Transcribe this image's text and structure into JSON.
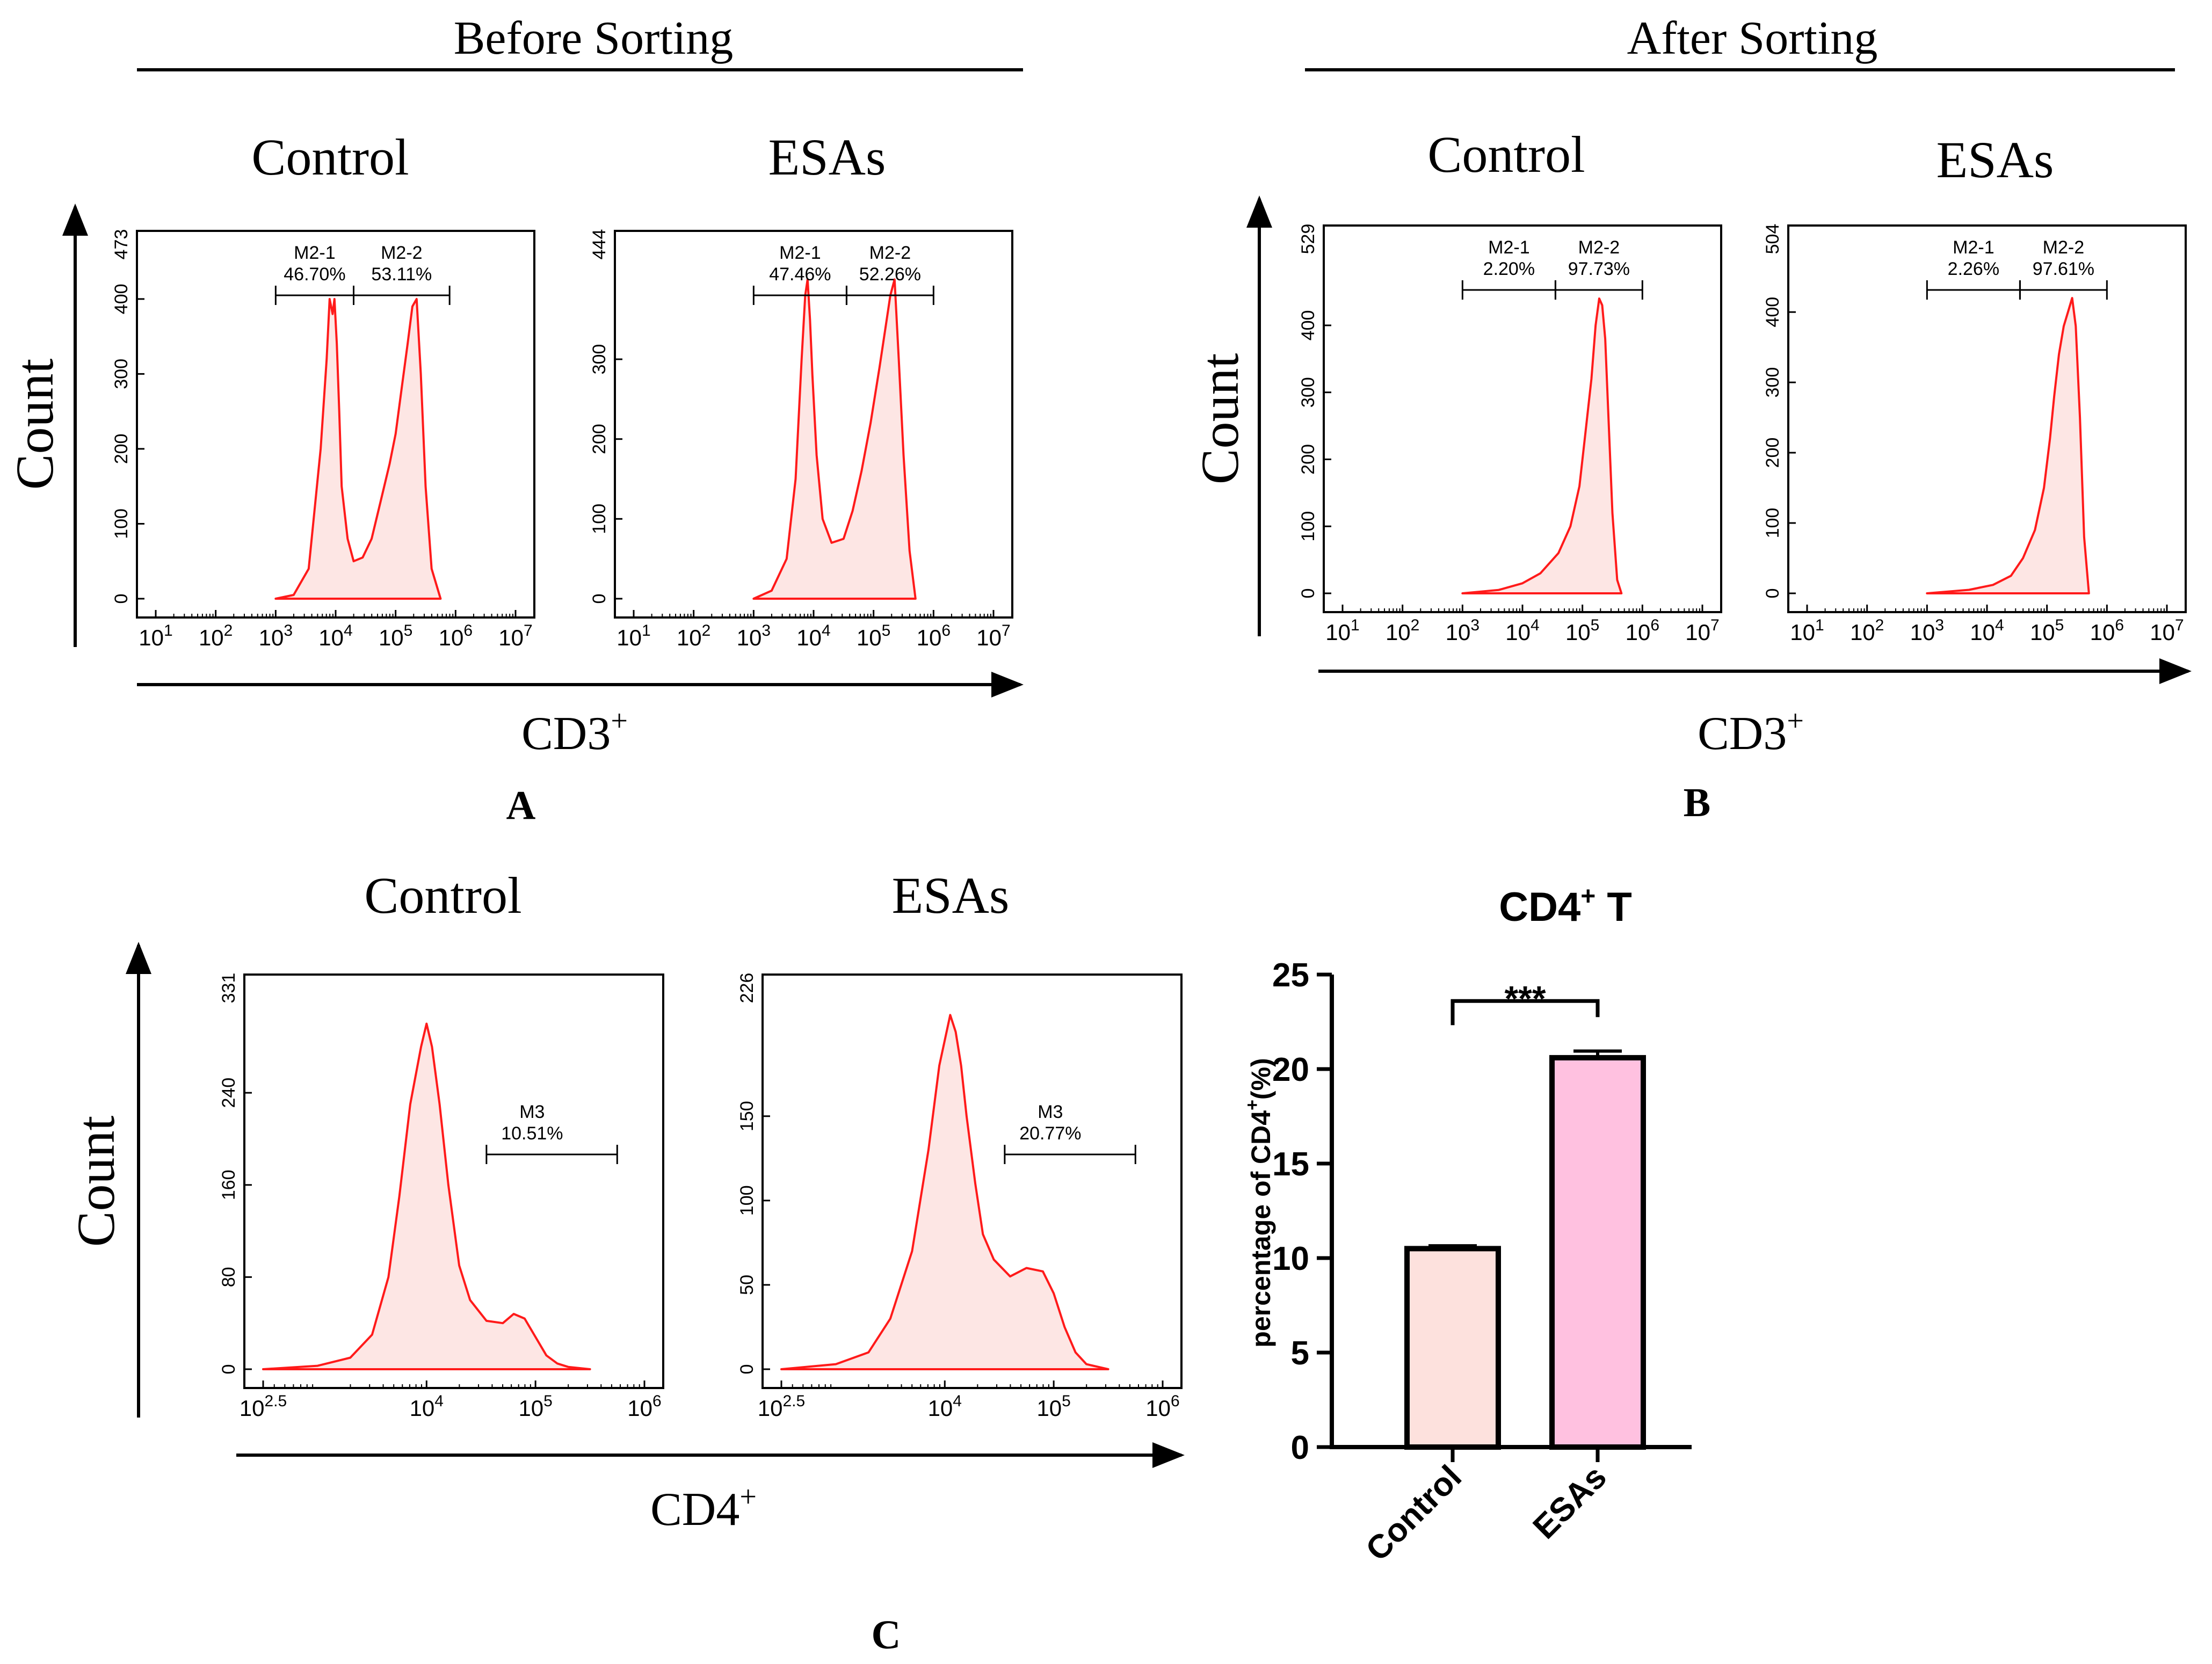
{
  "figure": {
    "section_before": "Before Sorting",
    "section_after": "After Sorting",
    "count_label": "Count",
    "panel_letters": {
      "a": "A",
      "b": "B",
      "c": "C"
    },
    "x_label_a": "CD3",
    "x_label_a_sup": "+",
    "x_label_b": "CD3",
    "x_label_b_sup": "+",
    "x_label_c": "CD4",
    "x_label_c_sup": "+",
    "group_titles": {
      "a1": "Control",
      "a2": "ESAs",
      "b1": "Control",
      "b2": "ESAs",
      "c1": "Control",
      "c2": "ESAs"
    }
  },
  "chart_data": [
    {
      "id": "a1",
      "type": "histogram",
      "panel": "A",
      "group": "Control",
      "x_scale": "log10",
      "xlim_log": [
        1,
        7
      ],
      "x_ticks": [
        1,
        2,
        3,
        4,
        5,
        6,
        7
      ],
      "y_ticks": [
        0,
        100,
        200,
        300,
        400
      ],
      "y_max_label": "473",
      "ylim": [
        0,
        473
      ],
      "gates": [
        {
          "name": "M2-1",
          "value": "46.70%",
          "from": 3,
          "to": 4.3
        },
        {
          "name": "M2-2",
          "value": "53.11%",
          "from": 4.3,
          "to": 5.9
        }
      ],
      "histogram_log_x": [
        3.0,
        3.3,
        3.55,
        3.75,
        3.85,
        3.9,
        3.95,
        3.98,
        4.02,
        4.06,
        4.1,
        4.2,
        4.3,
        4.45,
        4.6,
        4.75,
        4.9,
        5.0,
        5.1,
        5.2,
        5.28,
        5.35,
        5.42,
        5.5,
        5.6,
        5.75
      ],
      "histogram_counts": [
        0,
        5,
        40,
        200,
        320,
        400,
        380,
        400,
        340,
        250,
        150,
        80,
        50,
        55,
        80,
        130,
        180,
        220,
        280,
        340,
        390,
        400,
        300,
        150,
        40,
        0
      ]
    },
    {
      "id": "a2",
      "type": "histogram",
      "panel": "A",
      "group": "ESAs",
      "x_scale": "log10",
      "xlim_log": [
        1,
        7
      ],
      "x_ticks": [
        1,
        2,
        3,
        4,
        5,
        6,
        7
      ],
      "y_ticks": [
        0,
        100,
        200,
        300
      ],
      "y_max_label": "444",
      "ylim": [
        0,
        444
      ],
      "gates": [
        {
          "name": "M2-1",
          "value": "47.46%",
          "from": 3,
          "to": 4.55
        },
        {
          "name": "M2-2",
          "value": "52.26%",
          "from": 4.55,
          "to": 6.0
        }
      ],
      "histogram_log_x": [
        3.0,
        3.3,
        3.55,
        3.7,
        3.8,
        3.86,
        3.9,
        3.94,
        3.98,
        4.05,
        4.15,
        4.3,
        4.5,
        4.65,
        4.8,
        4.95,
        5.1,
        5.2,
        5.28,
        5.35,
        5.42,
        5.5,
        5.6,
        5.7
      ],
      "histogram_counts": [
        0,
        10,
        50,
        150,
        300,
        380,
        400,
        350,
        280,
        180,
        100,
        70,
        75,
        110,
        160,
        220,
        290,
        340,
        380,
        400,
        300,
        180,
        60,
        0
      ]
    },
    {
      "id": "b1",
      "type": "histogram",
      "panel": "B",
      "group": "Control",
      "x_scale": "log10",
      "xlim_log": [
        1,
        7
      ],
      "x_ticks": [
        1,
        2,
        3,
        4,
        5,
        6,
        7
      ],
      "y_ticks": [
        0,
        100,
        200,
        300,
        400
      ],
      "y_max_label": "529",
      "ylim": [
        0,
        529
      ],
      "gates": [
        {
          "name": "M2-1",
          "value": "2.20%",
          "from": 3,
          "to": 4.55
        },
        {
          "name": "M2-2",
          "value": "97.73%",
          "from": 4.55,
          "to": 6.0
        }
      ],
      "histogram_log_x": [
        3.0,
        3.6,
        4.0,
        4.3,
        4.6,
        4.8,
        4.95,
        5.05,
        5.15,
        5.22,
        5.28,
        5.33,
        5.38,
        5.44,
        5.5,
        5.58,
        5.65
      ],
      "histogram_counts": [
        0,
        5,
        15,
        30,
        60,
        100,
        160,
        240,
        320,
        400,
        440,
        430,
        380,
        250,
        120,
        20,
        0
      ]
    },
    {
      "id": "b2",
      "type": "histogram",
      "panel": "B",
      "group": "ESAs",
      "x_scale": "log10",
      "xlim_log": [
        1,
        7
      ],
      "x_ticks": [
        1,
        2,
        3,
        4,
        5,
        6,
        7
      ],
      "y_ticks": [
        0,
        100,
        200,
        300,
        400
      ],
      "y_max_label": "504",
      "ylim": [
        0,
        504
      ],
      "gates": [
        {
          "name": "M2-1",
          "value": "2.26%",
          "from": 3,
          "to": 4.55
        },
        {
          "name": "M2-2",
          "value": "97.61%",
          "from": 4.55,
          "to": 6.0
        }
      ],
      "histogram_log_x": [
        3.0,
        3.7,
        4.1,
        4.4,
        4.6,
        4.8,
        4.95,
        5.05,
        5.12,
        5.2,
        5.28,
        5.35,
        5.42,
        5.48,
        5.55,
        5.62,
        5.7
      ],
      "histogram_counts": [
        0,
        5,
        12,
        25,
        50,
        90,
        150,
        220,
        280,
        340,
        380,
        400,
        420,
        380,
        250,
        80,
        0
      ]
    },
    {
      "id": "c1",
      "type": "histogram",
      "panel": "C",
      "group": "Control",
      "x_scale": "log10",
      "xlim_log": [
        2.5,
        6
      ],
      "x_ticks": [
        2.5,
        4,
        5,
        6
      ],
      "y_ticks": [
        0,
        80,
        160,
        240
      ],
      "y_max_label": "331",
      "ylim": [
        0,
        331
      ],
      "gates": [
        {
          "name": "M3",
          "value": "10.51%",
          "from": 4.55,
          "to": 5.75
        }
      ],
      "histogram_log_x": [
        2.5,
        3.0,
        3.3,
        3.5,
        3.65,
        3.75,
        3.85,
        3.95,
        4.0,
        4.05,
        4.12,
        4.2,
        4.3,
        4.4,
        4.55,
        4.7,
        4.8,
        4.9,
        5.0,
        5.1,
        5.2,
        5.3,
        5.5
      ],
      "histogram_counts": [
        0,
        3,
        10,
        30,
        80,
        150,
        230,
        280,
        300,
        280,
        230,
        160,
        90,
        60,
        42,
        40,
        48,
        44,
        28,
        12,
        5,
        2,
        0
      ]
    },
    {
      "id": "c2",
      "type": "histogram",
      "panel": "C",
      "group": "ESAs",
      "x_scale": "log10",
      "xlim_log": [
        2.5,
        6
      ],
      "x_ticks": [
        2.5,
        4,
        5,
        6
      ],
      "y_ticks": [
        0,
        50,
        100,
        150
      ],
      "y_max_label": "226",
      "ylim": [
        0,
        226
      ],
      "gates": [
        {
          "name": "M3",
          "value": "20.77%",
          "from": 4.55,
          "to": 5.75
        }
      ],
      "histogram_log_x": [
        2.5,
        3.0,
        3.3,
        3.5,
        3.7,
        3.85,
        3.95,
        4.05,
        4.1,
        4.15,
        4.2,
        4.28,
        4.35,
        4.45,
        4.6,
        4.75,
        4.9,
        5.0,
        5.1,
        5.2,
        5.3,
        5.5
      ],
      "histogram_counts": [
        0,
        3,
        10,
        30,
        70,
        130,
        180,
        210,
        200,
        180,
        150,
        110,
        80,
        65,
        55,
        60,
        58,
        45,
        25,
        10,
        3,
        0
      ]
    },
    {
      "id": "c3",
      "type": "bar",
      "panel": "C",
      "title": "CD4",
      "title_sup": "+",
      "title_suffix": " T",
      "ylabel": "percentage of CD4",
      "ylabel_sup": "+",
      "ylabel_unit": "(%)",
      "ylim": [
        0,
        25
      ],
      "y_ticks": [
        0,
        5,
        10,
        15,
        20,
        25
      ],
      "categories": [
        "Control",
        "ESAs"
      ],
      "values": [
        10.5,
        20.6
      ],
      "errors": [
        0.15,
        0.35
      ],
      "significance": "***",
      "colors": [
        "#fde1dd",
        "#ffc1e0"
      ]
    }
  ],
  "colors": {
    "histogram_line": "#ff1a1a",
    "histogram_fill": "#fde6e4",
    "axis": "#000000"
  }
}
